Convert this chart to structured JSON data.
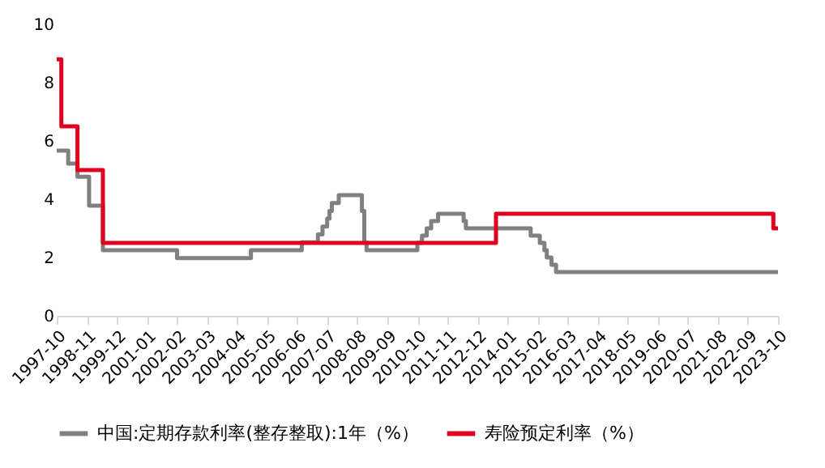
{
  "chart_data": {
    "type": "step",
    "xlim": [
      "1997-10",
      "2023-10"
    ],
    "xticks": [
      "1997-10",
      "1998-11",
      "1999-12",
      "2001-01",
      "2002-02",
      "2003-03",
      "2004-04",
      "2005-05",
      "2006-06",
      "2007-07",
      "2008-08",
      "2009-09",
      "2010-10",
      "2011-11",
      "2012-12",
      "2014-01",
      "2015-02",
      "2016-03",
      "2017-04",
      "2018-05",
      "2019-06",
      "2020-07",
      "2021-08",
      "2022-09",
      "2023-10"
    ],
    "ylim": [
      0,
      10
    ],
    "yticks": [
      0,
      2,
      4,
      6,
      8,
      10
    ],
    "grid": false,
    "legend": "bottom",
    "line_style": "solid",
    "marker": "none",
    "series": [
      {
        "name": "中国:定期存款利率(整存整取):1年（%）",
        "color": "#808080",
        "x": [
          "1997-10",
          "1998-03",
          "1998-07",
          "1998-12",
          "1999-06",
          "2002-02",
          "2004-10",
          "2006-08",
          "2007-03",
          "2007-05",
          "2007-07",
          "2007-08",
          "2007-09",
          "2007-12",
          "2008-10",
          "2008-11",
          "2008-12",
          "2010-10",
          "2010-12",
          "2011-02",
          "2011-04",
          "2011-07",
          "2012-06",
          "2012-07",
          "2014-11",
          "2015-03",
          "2015-05",
          "2015-06",
          "2015-08",
          "2015-10",
          "2023-10"
        ],
        "values": [
          5.67,
          5.22,
          4.77,
          3.78,
          2.25,
          1.98,
          2.25,
          2.52,
          2.79,
          3.06,
          3.33,
          3.6,
          3.87,
          4.14,
          3.6,
          2.52,
          2.25,
          2.5,
          2.75,
          3.0,
          3.25,
          3.5,
          3.25,
          3.0,
          2.75,
          2.5,
          2.25,
          2.0,
          1.75,
          1.5,
          1.5
        ]
      },
      {
        "name": "寿险预定利率（%）",
        "color": "#e00020",
        "x": [
          "1997-10",
          "1997-12",
          "1998-07",
          "1999-06",
          "2013-08",
          "2023-08",
          "2023-10"
        ],
        "values": [
          8.8,
          6.5,
          5.0,
          2.5,
          3.5,
          3.0,
          3.0
        ]
      }
    ]
  }
}
